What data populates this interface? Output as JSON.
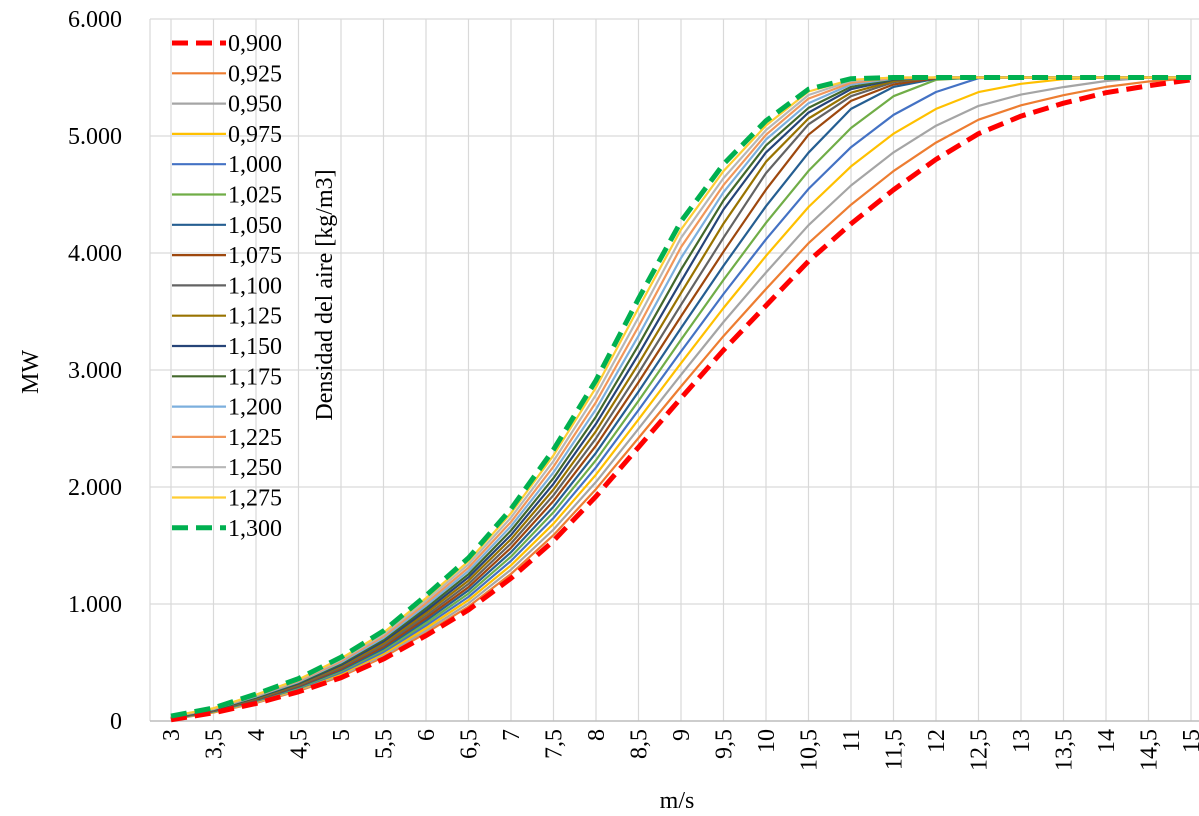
{
  "chart_data": {
    "type": "line",
    "xlabel": "m/s",
    "ylabel": "MW",
    "legend_title": "Densidad del aire [kg/m3]",
    "legend_position": "top-left",
    "grid": true,
    "xlim": [
      3,
      15
    ],
    "ylim": [
      0,
      6000
    ],
    "x_tick_labels": [
      "3",
      "3,5",
      "4",
      "4,5",
      "5",
      "5,5",
      "6",
      "6,5",
      "7",
      "7,5",
      "8",
      "8,5",
      "9",
      "9,5",
      "10",
      "10,5",
      "11",
      "11,5",
      "12",
      "12,5",
      "13",
      "13,5",
      "14",
      "14,5",
      "15"
    ],
    "y_tick_labels": [
      "0",
      "1.000",
      "2.000",
      "3.000",
      "4.000",
      "5.000",
      "6.000"
    ],
    "y_tick_values": [
      0,
      1000,
      2000,
      3000,
      4000,
      5000,
      6000
    ],
    "x": [
      3,
      3.5,
      4,
      4.5,
      5,
      5.5,
      6,
      6.5,
      7,
      7.5,
      8,
      8.5,
      9,
      9.5,
      10,
      10.5,
      11,
      11.5,
      12,
      12.5,
      13,
      13.5,
      14,
      14.5,
      15
    ],
    "series": [
      {
        "name": "0,900",
        "color": "#ff0000",
        "dashed": true,
        "values": [
          10,
          70,
          150,
          250,
          370,
          530,
          730,
          950,
          1220,
          1540,
          1920,
          2340,
          2760,
          3170,
          3550,
          3930,
          4250,
          4540,
          4800,
          5020,
          5170,
          5280,
          5370,
          5430,
          5480
        ]
      },
      {
        "name": "0,925",
        "color": "#ed7d31",
        "dashed": false,
        "values": [
          12,
          72,
          155,
          257,
          381,
          545,
          751,
          978,
          1257,
          1589,
          1982,
          2419,
          2859,
          3290,
          3692,
          4084,
          4413,
          4700,
          4944,
          5139,
          5262,
          5349,
          5420,
          5466,
          5493
        ]
      },
      {
        "name": "0,950",
        "color": "#a5a5a5",
        "dashed": false,
        "values": [
          14,
          75,
          160,
          264,
          392,
          560,
          772,
          1006,
          1294,
          1637,
          2044,
          2498,
          2959,
          3410,
          3833,
          4238,
          4577,
          4860,
          5088,
          5257,
          5354,
          5418,
          5470,
          5500,
          5500
        ]
      },
      {
        "name": "0,975",
        "color": "#ffc000",
        "dashed": false,
        "values": [
          16,
          77,
          165,
          271,
          403,
          575,
          793,
          1033,
          1331,
          1686,
          2106,
          2578,
          3058,
          3530,
          3975,
          4393,
          4740,
          5020,
          5232,
          5375,
          5446,
          5486,
          5500,
          5500,
          5500
        ]
      },
      {
        "name": "1,000",
        "color": "#4472c4",
        "dashed": false,
        "values": [
          18,
          80,
          170,
          278,
          414,
          590,
          815,
          1061,
          1368,
          1735,
          2168,
          2657,
          3158,
          3650,
          4117,
          4548,
          4904,
          5180,
          5376,
          5494,
          5500,
          5500,
          5500,
          5500,
          5500
        ]
      },
      {
        "name": "1,025",
        "color": "#70ad47",
        "dashed": false,
        "values": [
          20,
          83,
          175,
          285,
          425,
          605,
          836,
          1089,
          1405,
          1784,
          2230,
          2736,
          3258,
          3770,
          4258,
          4702,
          5068,
          5340,
          5480,
          5500,
          5500,
          5500,
          5500,
          5500,
          5500
        ]
      },
      {
        "name": "1,050",
        "color": "#255e91",
        "dashed": false,
        "values": [
          22,
          85,
          180,
          292,
          436,
          620,
          858,
          1117,
          1443,
          1832,
          2292,
          2815,
          3358,
          3891,
          4400,
          4857,
          5232,
          5420,
          5490,
          5500,
          5500,
          5500,
          5500,
          5500,
          5500
        ]
      },
      {
        "name": "1,075",
        "color": "#9e480e",
        "dashed": false,
        "values": [
          24,
          88,
          185,
          299,
          446,
          635,
          879,
          1144,
          1480,
          1881,
          2354,
          2895,
          3458,
          4011,
          4542,
          5011,
          5300,
          5440,
          5495,
          5500,
          5500,
          5500,
          5500,
          5500,
          5500
        ]
      },
      {
        "name": "1,100",
        "color": "#636363",
        "dashed": false,
        "values": [
          26,
          91,
          190,
          306,
          457,
          650,
          900,
          1172,
          1517,
          1930,
          2416,
          2974,
          3557,
          4131,
          4683,
          5100,
          5340,
          5460,
          5500,
          5500,
          5500,
          5500,
          5500,
          5500,
          5500
        ]
      },
      {
        "name": "1,125",
        "color": "#997300",
        "dashed": false,
        "values": [
          28,
          93,
          195,
          313,
          468,
          665,
          922,
          1200,
          1554,
          1979,
          2478,
          3053,
          3657,
          4251,
          4780,
          5150,
          5370,
          5470,
          5500,
          5500,
          5500,
          5500,
          5500,
          5500,
          5500
        ]
      },
      {
        "name": "1,150",
        "color": "#264478",
        "dashed": false,
        "values": [
          30,
          96,
          200,
          320,
          479,
          680,
          943,
          1228,
          1591,
          2027,
          2540,
          3133,
          3757,
          4372,
          4860,
          5200,
          5400,
          5480,
          5500,
          5500,
          5500,
          5500,
          5500,
          5500,
          5500
        ]
      },
      {
        "name": "1,175",
        "color": "#43682b",
        "dashed": false,
        "values": [
          32,
          99,
          205,
          327,
          490,
          695,
          965,
          1255,
          1628,
          2076,
          2602,
          3212,
          3857,
          4450,
          4920,
          5240,
          5420,
          5485,
          5500,
          5500,
          5500,
          5500,
          5500,
          5500,
          5500
        ]
      },
      {
        "name": "1,200",
        "color": "#7cafdd",
        "dashed": false,
        "values": [
          34,
          101,
          210,
          334,
          501,
          710,
          986,
          1283,
          1665,
          2125,
          2664,
          3292,
          3957,
          4520,
          4970,
          5280,
          5440,
          5490,
          5500,
          5500,
          5500,
          5500,
          5500,
          5500,
          5500
        ]
      },
      {
        "name": "1,225",
        "color": "#f1975a",
        "dashed": false,
        "values": [
          36,
          104,
          215,
          341,
          512,
          725,
          1007,
          1311,
          1702,
          2174,
          2726,
          3371,
          4050,
          4580,
          5010,
          5320,
          5455,
          5495,
          5500,
          5500,
          5500,
          5500,
          5500,
          5500,
          5500
        ]
      },
      {
        "name": "1,250",
        "color": "#b7b7b7",
        "dashed": false,
        "values": [
          38,
          107,
          220,
          348,
          523,
          740,
          1029,
          1339,
          1739,
          2222,
          2788,
          3450,
          4130,
          4640,
          5050,
          5350,
          5470,
          5500,
          5500,
          5500,
          5500,
          5500,
          5500,
          5500,
          5500
        ]
      },
      {
        "name": "1,275",
        "color": "#ffcd33",
        "dashed": false,
        "values": [
          40,
          109,
          225,
          355,
          534,
          755,
          1050,
          1366,
          1776,
          2271,
          2850,
          3530,
          4200,
          4700,
          5090,
          5380,
          5480,
          5500,
          5500,
          5500,
          5500,
          5500,
          5500,
          5500,
          5500
        ]
      },
      {
        "name": "1,300",
        "color": "#00b050",
        "dashed": true,
        "values": [
          42,
          112,
          230,
          362,
          545,
          770,
          1072,
          1394,
          1813,
          2320,
          2912,
          3609,
          4270,
          4760,
          5130,
          5400,
          5490,
          5500,
          5500,
          5500,
          5500,
          5500,
          5500,
          5500,
          5500
        ]
      }
    ]
  }
}
